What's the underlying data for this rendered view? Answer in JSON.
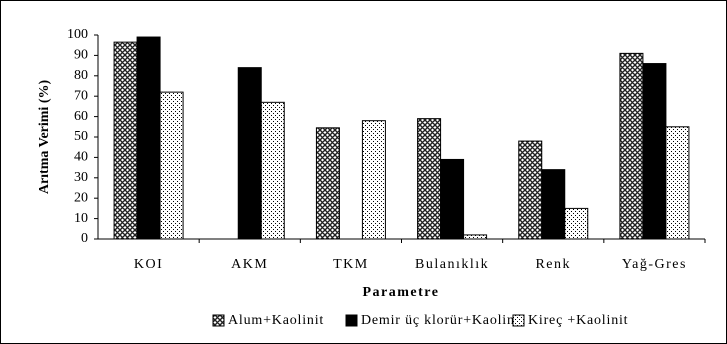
{
  "chart_data": {
    "type": "bar",
    "ylabel": "Arıtma Verimi (%)",
    "xlabel": "Parametre",
    "categories": [
      "KOI",
      "AKM",
      "TKM",
      "Bulanıklık",
      "Renk",
      "Yağ-Gres"
    ],
    "series": [
      {
        "name": "Alum+Kaolinit",
        "color": "#333333",
        "pattern": "crosshatch",
        "values": [
          96.5,
          null,
          54.5,
          59,
          48,
          91
        ]
      },
      {
        "name": "Demir üç klorür+Kaolinit",
        "color": "#000000",
        "pattern": "solid",
        "values": [
          99,
          84,
          null,
          39,
          34,
          86
        ]
      },
      {
        "name": "Kireç +Kaolinit",
        "color": "#000000",
        "pattern": "dots",
        "values": [
          72,
          67,
          58,
          2,
          15,
          55
        ]
      }
    ],
    "ylim": [
      0,
      100
    ],
    "yticks": [
      0,
      10,
      20,
      30,
      40,
      50,
      60,
      70,
      80,
      90,
      100
    ],
    "grid": false,
    "legend": "bottom"
  }
}
